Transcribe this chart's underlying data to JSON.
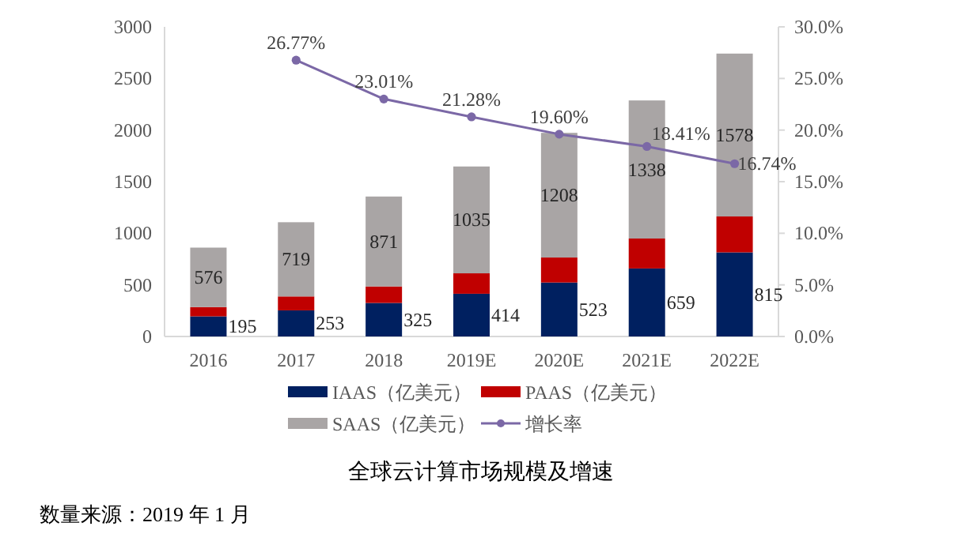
{
  "chart_data": {
    "type": "bar",
    "title": "全球云计算市场规模及增速",
    "annotations": [
      "数量来源：2019 年 1 月"
    ],
    "categories": [
      "2016",
      "2017",
      "2018",
      "2019E",
      "2020E",
      "2021E",
      "2022E"
    ],
    "stacked": true,
    "legend": "bottom",
    "ylim": [
      0,
      3000
    ],
    "yticks": [
      0,
      500,
      1000,
      1500,
      2000,
      2500,
      3000
    ],
    "y2lim": [
      0,
      30
    ],
    "y2ticks": [
      {
        "value": 0,
        "label": "0.0%"
      },
      {
        "value": 5,
        "label": "5.0%"
      },
      {
        "value": 10,
        "label": "10.0%"
      },
      {
        "value": 15,
        "label": "15.0%"
      },
      {
        "value": 20,
        "label": "20.0%"
      },
      {
        "value": 25,
        "label": "25.0%"
      },
      {
        "value": 30,
        "label": "30.0%"
      }
    ],
    "series": [
      {
        "name": "IAAS（亿美元）",
        "color": "#002060",
        "values": [
          195,
          253,
          325,
          414,
          523,
          659,
          815
        ],
        "value_labels": [
          "195",
          "253",
          "325",
          "414",
          "523",
          "659",
          "815"
        ]
      },
      {
        "name": "PAAS（亿美元）",
        "color": "#c00000",
        "values": [
          90,
          135,
          160,
          198,
          242,
          290,
          348
        ]
      },
      {
        "name": "SAAS（亿美元）",
        "color": "#a9a5a5",
        "values": [
          576,
          719,
          871,
          1035,
          1208,
          1338,
          1578
        ],
        "value_labels": [
          "576",
          "719",
          "871",
          "1035",
          "1208",
          "1338",
          "1578"
        ]
      },
      {
        "name": "增长率",
        "type": "line",
        "axis": "y2",
        "marker": "circle",
        "color": "#7b68a6",
        "values": [
          null,
          26.77,
          23.01,
          21.28,
          19.6,
          18.41,
          16.74
        ],
        "value_labels": [
          null,
          "26.77%",
          "23.01%",
          "21.28%",
          "19.60%",
          "18.41%",
          "16.74%"
        ]
      }
    ]
  }
}
